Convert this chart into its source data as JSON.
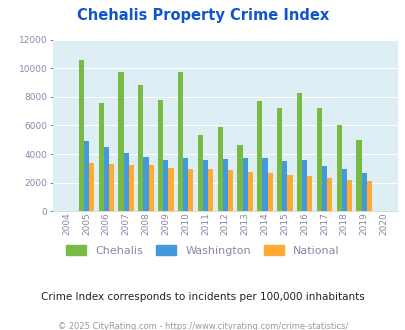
{
  "title": "Chehalis Property Crime Index",
  "years": [
    2004,
    2005,
    2006,
    2007,
    2008,
    2009,
    2010,
    2011,
    2012,
    2013,
    2014,
    2015,
    2016,
    2017,
    2018,
    2019,
    2020
  ],
  "chehalis": [
    0,
    10600,
    7600,
    9700,
    8850,
    7750,
    9700,
    5300,
    5900,
    4600,
    7700,
    7200,
    8300,
    7200,
    6000,
    5000,
    0
  ],
  "washington": [
    0,
    4900,
    4500,
    4050,
    3800,
    3600,
    3750,
    3600,
    3650,
    3750,
    3750,
    3500,
    3550,
    3150,
    2950,
    2650,
    0
  ],
  "national": [
    0,
    3400,
    3300,
    3200,
    3200,
    3000,
    2950,
    2950,
    2900,
    2750,
    2650,
    2500,
    2450,
    2350,
    2200,
    2100,
    0
  ],
  "chehalis_color": "#77bb44",
  "washington_color": "#4499dd",
  "national_color": "#ffaa33",
  "fig_bg_color": "#ffffff",
  "plot_bg_color": "#ddeef4",
  "ylim": [
    0,
    12000
  ],
  "yticks": [
    0,
    2000,
    4000,
    6000,
    8000,
    10000,
    12000
  ],
  "title_color": "#1155cc",
  "subtitle": "Crime Index corresponds to incidents per 100,000 inhabitants",
  "footer": "© 2025 CityRating.com - https://www.cityrating.com/crime-statistics/",
  "subtitle_color": "#222222",
  "footer_color": "#999999",
  "tick_color": "#8888aa",
  "legend_labels": [
    "Chehalis",
    "Washington",
    "National"
  ]
}
